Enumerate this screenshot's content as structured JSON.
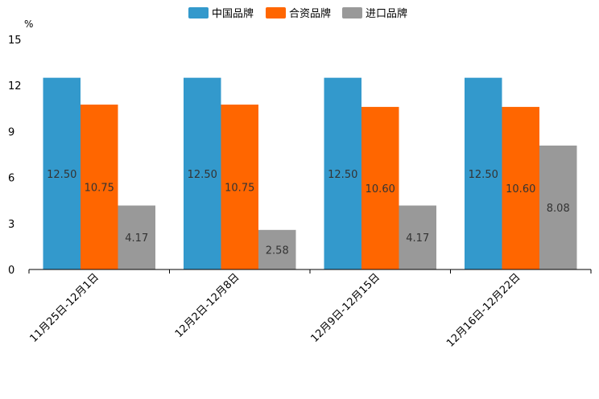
{
  "chart_data": {
    "type": "bar",
    "title": "",
    "unit": "%",
    "xlabel": "",
    "ylabel": "%",
    "ylim": [
      0,
      15
    ],
    "yticks": [
      0,
      3,
      6,
      9,
      12,
      15
    ],
    "grid": false,
    "legend_position": "top-center",
    "categories": [
      "11月25日-12月1日",
      "12月2日-12月8日",
      "12月9日-12月15日",
      "12月16日-12月22日"
    ],
    "series": [
      {
        "name": "中国品牌",
        "color": "#3399cc",
        "values": [
          12.5,
          12.5,
          12.5,
          12.5
        ],
        "labels": [
          "12.50",
          "12.50",
          "12.50",
          "12.50"
        ]
      },
      {
        "name": "合资品牌",
        "color": "#ff6600",
        "values": [
          10.75,
          10.75,
          10.6,
          10.6
        ],
        "labels": [
          "10.75",
          "10.75",
          "10.60",
          "10.60"
        ]
      },
      {
        "name": "进口品牌",
        "color": "#999999",
        "values": [
          4.17,
          2.58,
          4.17,
          8.08
        ],
        "labels": [
          "4.17",
          "2.58",
          "4.17",
          "8.08"
        ]
      }
    ]
  }
}
